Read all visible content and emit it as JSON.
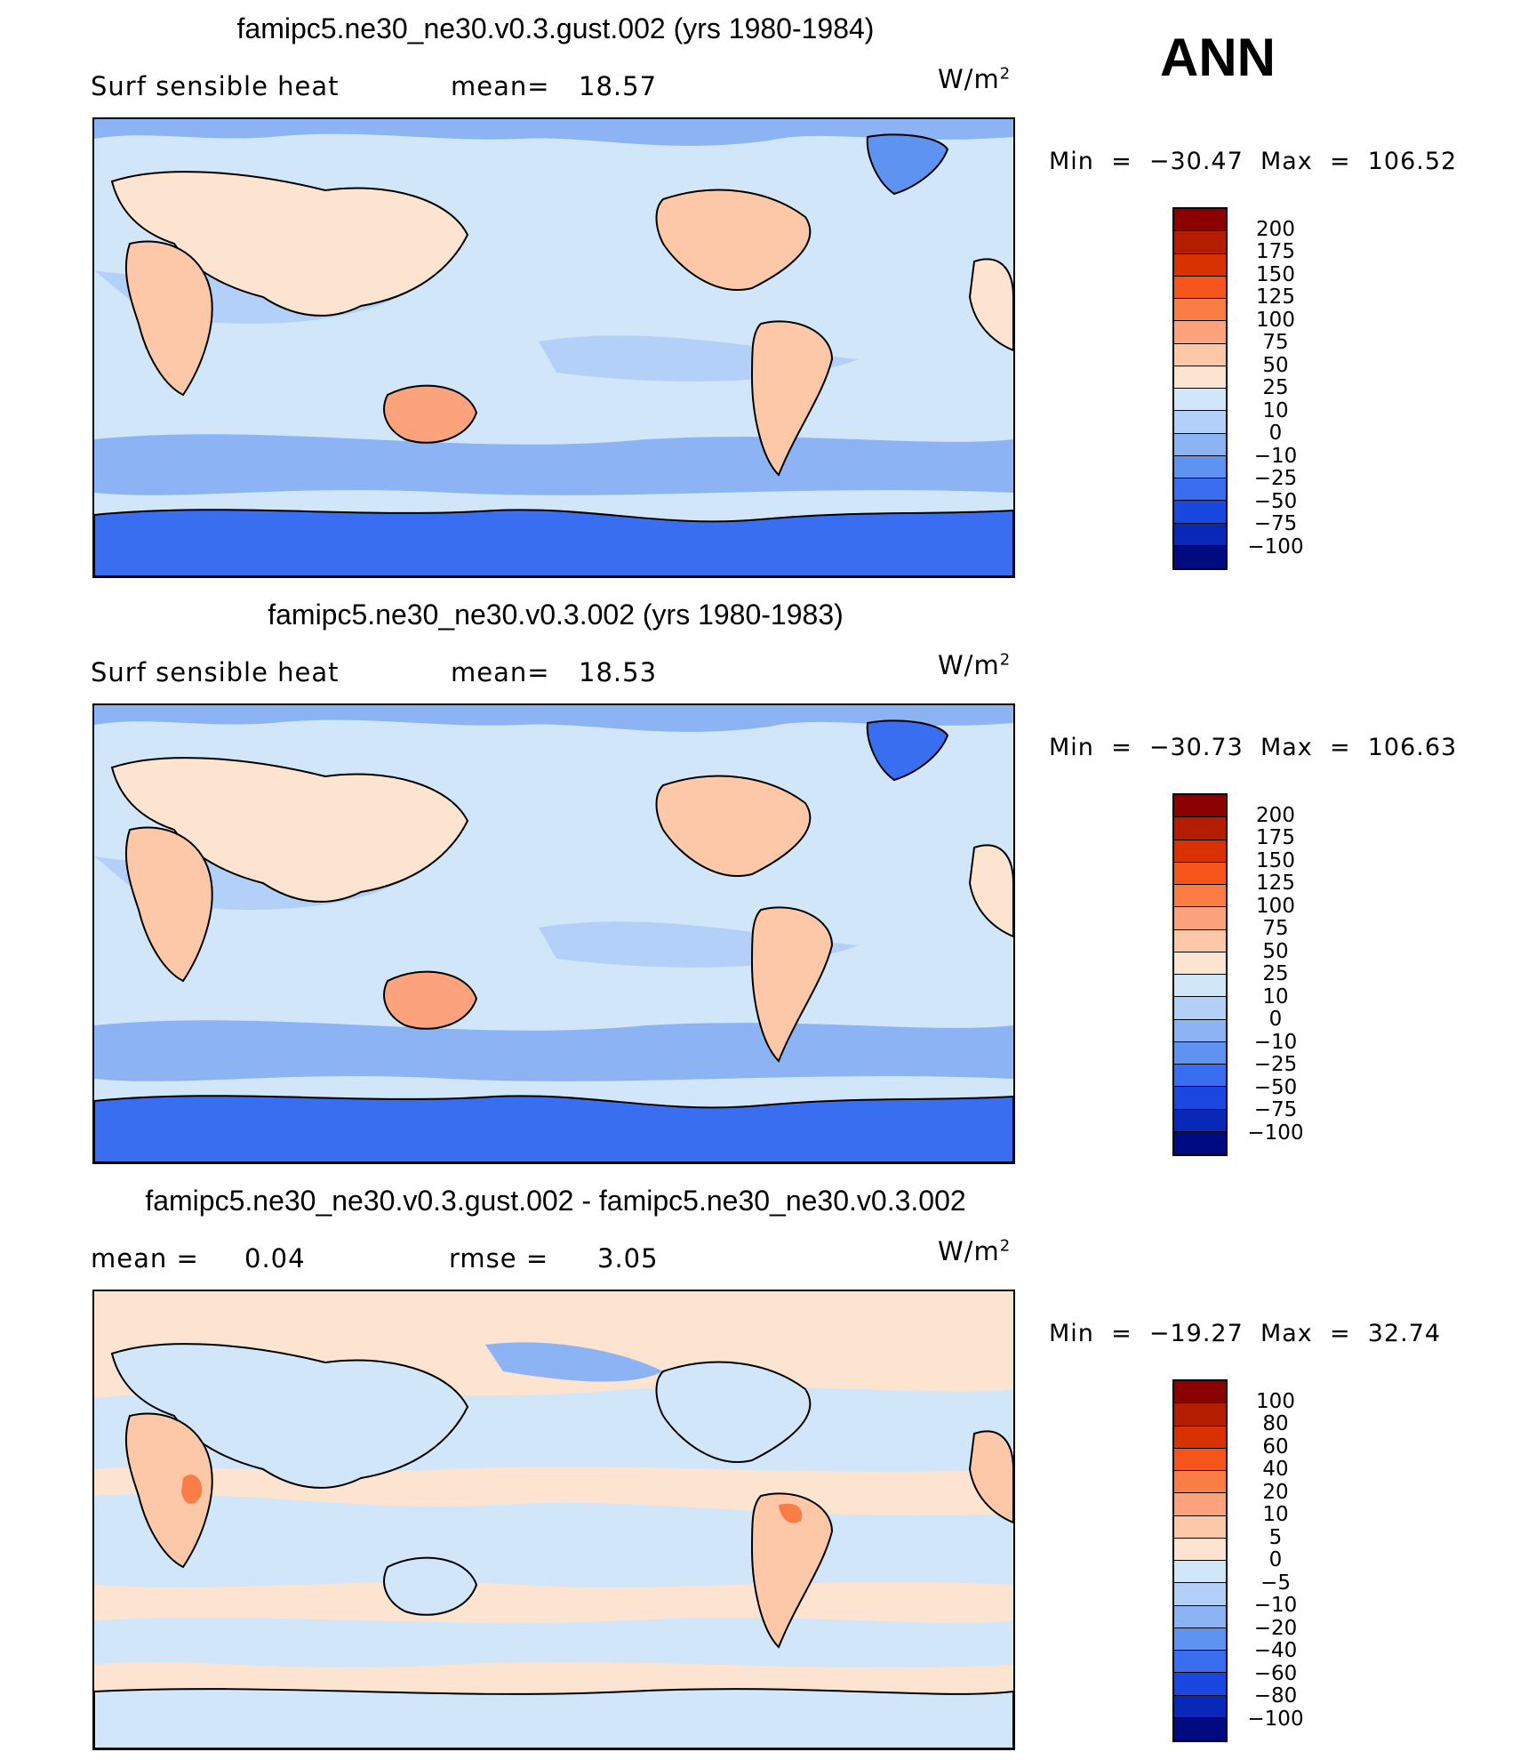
{
  "season": "ANN",
  "unit_base": "W/m",
  "unit_exp": "2",
  "panels": [
    {
      "title": "famipc5.ne30_ne30.v0.3.gust.002 (yrs 1980-1984)",
      "variable": "Surf sensible heat",
      "stat1_label": "mean=",
      "stat1_value": "18.57",
      "stat2_label": "",
      "stat2_value": "",
      "min_label": "Min",
      "min_value": "−30.47",
      "max_label": "Max",
      "max_value": "106.52"
    },
    {
      "title": "famipc5.ne30_ne30.v0.3.002 (yrs 1980-1983)",
      "variable": "Surf sensible heat",
      "stat1_label": "mean=",
      "stat1_value": "18.53",
      "stat2_label": "",
      "stat2_value": "",
      "min_label": "Min",
      "min_value": "−30.73",
      "max_label": "Max",
      "max_value": "106.63"
    },
    {
      "title": "famipc5.ne30_ne30.v0.3.gust.002 - famipc5.ne30_ne30.v0.3.002",
      "variable": "",
      "stat1_label": "mean =",
      "stat1_value": "0.04",
      "stat2_label": "rmse =",
      "stat2_value": "3.05",
      "min_label": "Min",
      "min_value": "−19.27",
      "max_label": "Max",
      "max_value": "32.74"
    }
  ],
  "colorbars": {
    "field": {
      "labels": [
        "200",
        "175",
        "150",
        "125",
        "100",
        "75",
        "50",
        "25",
        "10",
        "0",
        "−10",
        "−25",
        "−50",
        "−75",
        "−100"
      ],
      "colors": [
        "#8b0000",
        "#b51d00",
        "#d83200",
        "#f5541a",
        "#fa7d45",
        "#fca37d",
        "#fdc8a8",
        "#fde4d0",
        "#d2e6fa",
        "#b3d1f8",
        "#8cb4f5",
        "#5f93f2",
        "#3a6ef0",
        "#1a47e0",
        "#0a28b8",
        "#000a80"
      ]
    },
    "diff": {
      "labels": [
        "100",
        "80",
        "60",
        "40",
        "20",
        "10",
        "5",
        "0",
        "−5",
        "−10",
        "−20",
        "−40",
        "−60",
        "−80",
        "−100"
      ],
      "colors": [
        "#8b0000",
        "#b51d00",
        "#d83200",
        "#f5541a",
        "#fa7d45",
        "#fca37d",
        "#fdc8a8",
        "#fde4d0",
        "#d2e6fa",
        "#b3d1f8",
        "#8cb4f5",
        "#5f93f2",
        "#3a6ef0",
        "#1a47e0",
        "#0a28b8",
        "#000a80"
      ]
    }
  }
}
